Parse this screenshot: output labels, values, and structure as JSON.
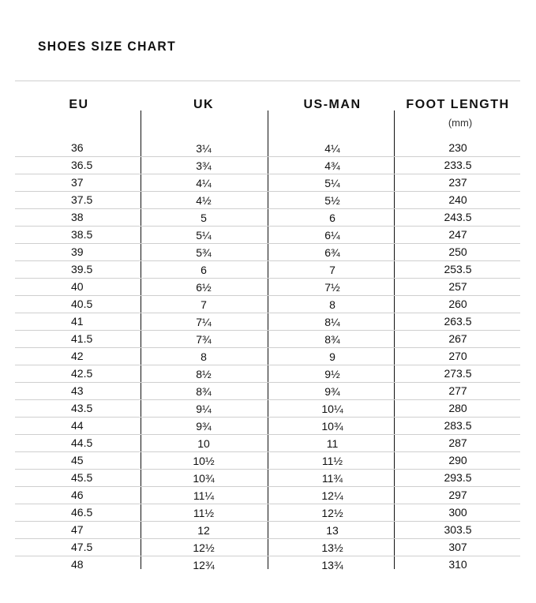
{
  "title": "SHOES SIZE CHART",
  "columns": [
    {
      "label": "EU",
      "sub": ""
    },
    {
      "label": "UK",
      "sub": ""
    },
    {
      "label": "US-MAN",
      "sub": ""
    },
    {
      "label": "FOOT LENGTH",
      "sub": "(mm)"
    }
  ],
  "rows": [
    [
      "36",
      "3¼",
      "4¼",
      "230"
    ],
    [
      "36.5",
      "3¾",
      "4¾",
      "233.5"
    ],
    [
      "37",
      "4¼",
      "5¼",
      "237"
    ],
    [
      "37.5",
      "4½",
      "5½",
      "240"
    ],
    [
      "38",
      "5",
      "6",
      "243.5"
    ],
    [
      "38.5",
      "5¼",
      "6¼",
      "247"
    ],
    [
      "39",
      "5¾",
      "6¾",
      "250"
    ],
    [
      "39.5",
      "6",
      "7",
      "253.5"
    ],
    [
      "40",
      "6½",
      "7½",
      "257"
    ],
    [
      "40.5",
      "7",
      "8",
      "260"
    ],
    [
      "41",
      "7¼",
      "8¼",
      "263.5"
    ],
    [
      "41.5",
      "7¾",
      "8¾",
      "267"
    ],
    [
      "42",
      "8",
      "9",
      "270"
    ],
    [
      "42.5",
      "8½",
      "9½",
      "273.5"
    ],
    [
      "43",
      "8¾",
      "9¾",
      "277"
    ],
    [
      "43.5",
      "9¼",
      "10¼",
      "280"
    ],
    [
      "44",
      "9¾",
      "10¾",
      "283.5"
    ],
    [
      "44.5",
      "10",
      "11",
      "287"
    ],
    [
      "45",
      "10½",
      "11½",
      "290"
    ],
    [
      "45.5",
      "10¾",
      "11¾",
      "293.5"
    ],
    [
      "46",
      "11¼",
      "12¼",
      "297"
    ],
    [
      "46.5",
      "11½",
      "12½",
      "300"
    ],
    [
      "47",
      "12",
      "13",
      "303.5"
    ],
    [
      "47.5",
      "12½",
      "13½",
      "307"
    ],
    [
      "48",
      "12¾",
      "13¾",
      "310"
    ]
  ]
}
